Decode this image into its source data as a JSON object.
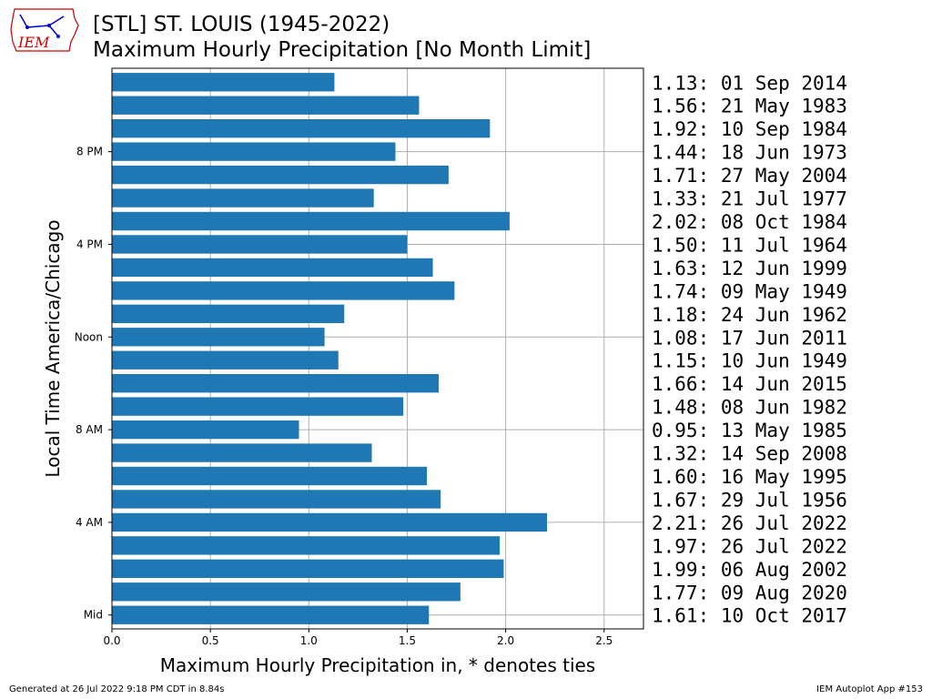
{
  "header": {
    "title": "[STL] ST. LOUIS (1945-2022)",
    "subtitle": "Maximum Hourly Precipitation [No Month Limit]",
    "logo_text": "IEM"
  },
  "footer": {
    "left": "Generated at 26 Jul 2022 9:18 PM CDT in 8.84s",
    "right": "IEM Autoplot App #153"
  },
  "colors": {
    "bar": "#1f77b4",
    "grid": "#b0b0b0",
    "logo_red": "#cc0000",
    "logo_blue": "#0000cc"
  },
  "chart_data": {
    "type": "bar",
    "orientation": "horizontal",
    "xlabel": "Maximum Hourly Precipitation in, * denotes ties",
    "ylabel": "Local Time America/Chicago",
    "xlim": [
      0,
      2.7
    ],
    "xticks": [
      0.0,
      0.5,
      1.0,
      1.5,
      2.0,
      2.5
    ],
    "xtick_labels": [
      "0.0",
      "0.5",
      "1.0",
      "1.5",
      "2.0",
      "2.5"
    ],
    "ytick_labels": [
      {
        "hour": 0,
        "label": "Mid"
      },
      {
        "hour": 4,
        "label": "4 AM"
      },
      {
        "hour": 8,
        "label": "8 AM"
      },
      {
        "hour": 12,
        "label": "Noon"
      },
      {
        "hour": 16,
        "label": "4 PM"
      },
      {
        "hour": 20,
        "label": "8 PM"
      }
    ],
    "grid": true,
    "hours": [
      0,
      1,
      2,
      3,
      4,
      5,
      6,
      7,
      8,
      9,
      10,
      11,
      12,
      13,
      14,
      15,
      16,
      17,
      18,
      19,
      20,
      21,
      22,
      23
    ],
    "values": [
      1.61,
      1.77,
      1.99,
      1.97,
      2.21,
      1.67,
      1.6,
      1.32,
      0.95,
      1.48,
      1.66,
      1.15,
      1.08,
      1.18,
      1.74,
      1.63,
      1.5,
      2.02,
      1.33,
      1.71,
      1.44,
      1.92,
      1.56,
      1.13
    ],
    "annotations": [
      "1.61: 10 Oct 2017",
      "1.77: 09 Aug 2020",
      "1.99: 06 Aug 2002",
      "1.97: 26 Jul 2022",
      "2.21: 26 Jul 2022",
      "1.67: 29 Jul 1956",
      "1.60: 16 May 1995",
      "1.32: 14 Sep 2008",
      "0.95: 13 May 1985",
      "1.48: 08 Jun 1982",
      "1.66: 14 Jun 2015",
      "1.15: 10 Jun 1949",
      "1.08: 17 Jun 2011",
      "1.18: 24 Jun 1962",
      "1.74: 09 May 1949",
      "1.63: 12 Jun 1999",
      "1.50: 11 Jul 1964",
      "2.02: 08 Oct 1984",
      "1.33: 21 Jul 1977",
      "1.71: 27 May 2004",
      "1.44: 18 Jun 1973",
      "1.92: 10 Sep 1984",
      "1.56: 21 May 1983",
      "1.13: 01 Sep 2014"
    ]
  }
}
